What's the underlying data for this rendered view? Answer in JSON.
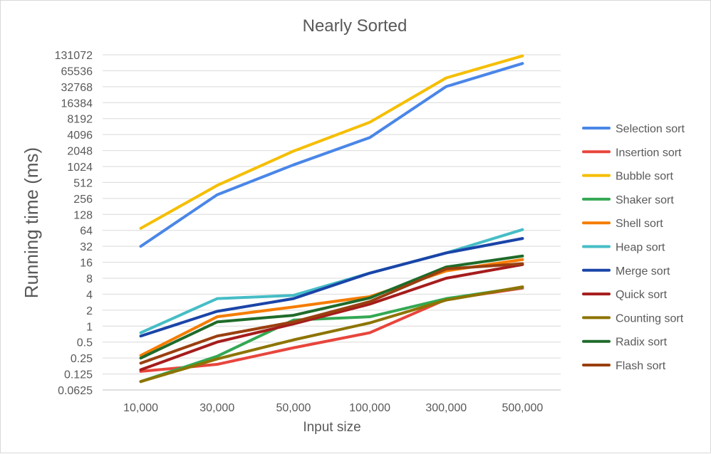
{
  "chart_data": {
    "type": "line",
    "title": "Nearly Sorted",
    "xlabel": "Input size",
    "ylabel": "Running time (ms)",
    "y_scale": "log2",
    "ylim": [
      0.0625,
      131072
    ],
    "y_ticks": [
      "0.0625",
      "0.125",
      "0.25",
      "0.5",
      "1",
      "2",
      "4",
      "8",
      "16",
      "32",
      "64",
      "128",
      "256",
      "512",
      "1024",
      "2048",
      "4096",
      "8192",
      "16384",
      "32768",
      "65536",
      "131072"
    ],
    "categories": [
      "10,000",
      "30,000",
      "50,000",
      "100,000",
      "300,000",
      "500,000"
    ],
    "grid": true,
    "legend_position": "right",
    "series": [
      {
        "name": "Selection sort",
        "color": "#4a86e8",
        "values": [
          32,
          300,
          1100,
          3600,
          33000,
          90000
        ]
      },
      {
        "name": "Insertion sort",
        "color": "#e8453c",
        "values": [
          0.14,
          0.19,
          0.39,
          0.75,
          3.2,
          5.2
        ]
      },
      {
        "name": "Bubble sort",
        "color": "#f5be00",
        "values": [
          70,
          450,
          2000,
          7000,
          48000,
          125000
        ]
      },
      {
        "name": "Shaker sort",
        "color": "#34a853",
        "values": [
          0.09,
          0.27,
          1.3,
          1.5,
          3.3,
          5.4
        ]
      },
      {
        "name": "Shell sort",
        "color": "#f57c00",
        "values": [
          0.28,
          1.5,
          2.3,
          3.6,
          11,
          18
        ]
      },
      {
        "name": "Heap sort",
        "color": "#46bdc6",
        "values": [
          0.75,
          3.3,
          3.8,
          10,
          24,
          66
        ]
      },
      {
        "name": "Merge sort",
        "color": "#1a44a8",
        "values": [
          0.65,
          1.9,
          3.3,
          10,
          24,
          45
        ]
      },
      {
        "name": "Quick sort",
        "color": "#a61c1c",
        "values": [
          0.15,
          0.5,
          1.1,
          2.6,
          8,
          14.5
        ]
      },
      {
        "name": "Counting sort",
        "color": "#8d7400",
        "values": [
          0.09,
          0.24,
          0.55,
          1.15,
          3.1,
          5.5
        ]
      },
      {
        "name": "Radix sort",
        "color": "#1f6b2a",
        "values": [
          0.25,
          1.2,
          1.6,
          3.4,
          13,
          21
        ]
      },
      {
        "name": "Flash sort",
        "color": "#9a3f0f",
        "values": [
          0.2,
          0.65,
          1.2,
          2.9,
          12,
          15
        ]
      }
    ]
  }
}
